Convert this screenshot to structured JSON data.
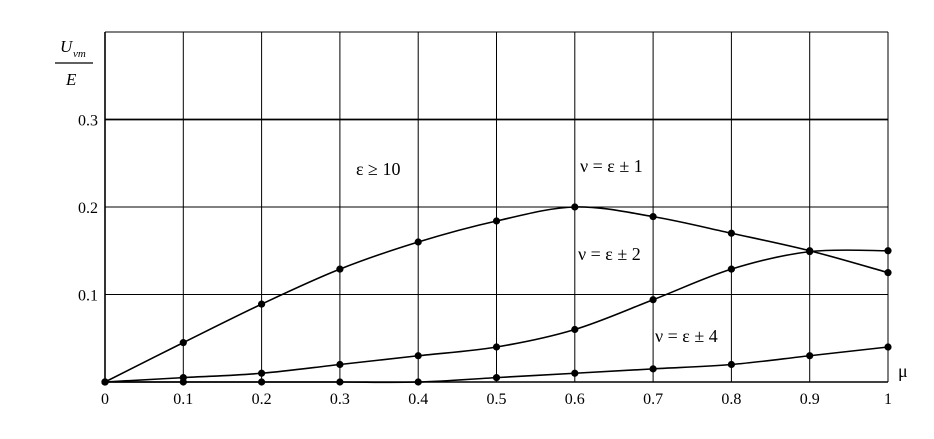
{
  "chart_data": {
    "type": "line",
    "xlabel": "μ",
    "ylabel": {
      "numerator": "U",
      "subscript": "vm",
      "denominator": "E"
    },
    "x_ticks": [
      "0",
      "0.1",
      "0.2",
      "0.3",
      "0.4",
      "0.5",
      "0.6",
      "0.7",
      "0.8",
      "0.9",
      "1"
    ],
    "y_ticks": [
      "0.1",
      "0.2",
      "0.3"
    ],
    "xlim": [
      0,
      1
    ],
    "ylim": [
      0,
      0.4
    ],
    "grid": true,
    "annotations": [
      "ε ≥ 10",
      "ν = ε ± 1",
      "ν = ε ± 2",
      "ν = ε ± 4"
    ],
    "series": [
      {
        "name": "ν = ε ± 1",
        "x": [
          0,
          0.1,
          0.2,
          0.3,
          0.4,
          0.5,
          0.6,
          0.7,
          0.8,
          0.9,
          1.0
        ],
        "y": [
          0,
          0.045,
          0.089,
          0.129,
          0.16,
          0.184,
          0.2,
          0.189,
          0.17,
          0.15,
          0.125
        ]
      },
      {
        "name": "ν = ε ± 2",
        "x": [
          0,
          0.1,
          0.2,
          0.3,
          0.4,
          0.5,
          0.6,
          0.7,
          0.8,
          0.9,
          1.0
        ],
        "y": [
          0,
          0.005,
          0.01,
          0.02,
          0.03,
          0.04,
          0.06,
          0.094,
          0.129,
          0.149,
          0.15
        ]
      },
      {
        "name": "ν = ε ± 4",
        "x": [
          0,
          0.1,
          0.2,
          0.3,
          0.4,
          0.5,
          0.6,
          0.7,
          0.8,
          0.9,
          1.0
        ],
        "y": [
          0,
          0,
          0,
          0,
          0,
          0.005,
          0.01,
          0.015,
          0.02,
          0.03,
          0.04
        ]
      }
    ]
  }
}
